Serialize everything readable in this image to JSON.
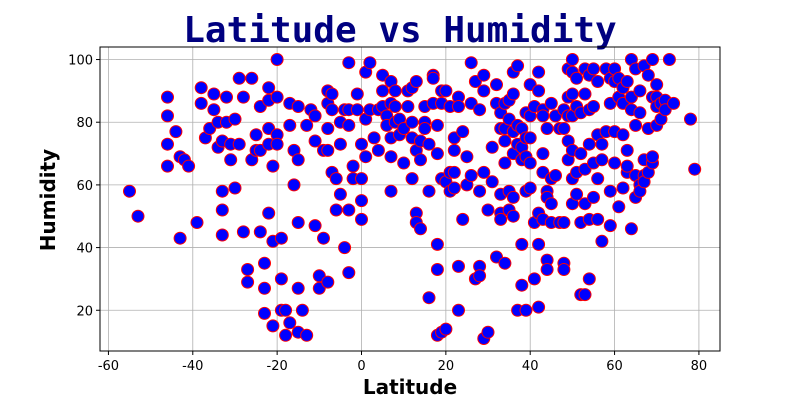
{
  "chart_data": {
    "type": "scatter",
    "title": "Latitude vs Humidity",
    "xlabel": "Latitude",
    "ylabel": "Humidity",
    "xlim": [
      -62,
      85
    ],
    "ylim": [
      7,
      104
    ],
    "xticks": [
      -60,
      -40,
      -20,
      0,
      20,
      40,
      60,
      80
    ],
    "yticks": [
      20,
      40,
      60,
      80,
      100
    ],
    "grid": true,
    "marker_fill": "#0000ff",
    "marker_edge": "#ff0000",
    "title_color": "#000080",
    "points": [
      [
        -55,
        58
      ],
      [
        -53,
        50
      ],
      [
        -46,
        88
      ],
      [
        -46,
        82
      ],
      [
        -46,
        73
      ],
      [
        -46,
        66
      ],
      [
        -44,
        77
      ],
      [
        -43,
        69
      ],
      [
        -43,
        43
      ],
      [
        -42,
        68
      ],
      [
        -41,
        66
      ],
      [
        -39,
        48
      ],
      [
        -38,
        91
      ],
      [
        -38,
        86
      ],
      [
        -37,
        75
      ],
      [
        -36,
        78
      ],
      [
        -35,
        89
      ],
      [
        -35,
        84
      ],
      [
        -34,
        80
      ],
      [
        -34,
        72
      ],
      [
        -33,
        74
      ],
      [
        -33,
        58
      ],
      [
        -33,
        52
      ],
      [
        -33,
        44
      ],
      [
        -32,
        88
      ],
      [
        -32,
        80
      ],
      [
        -31,
        73
      ],
      [
        -31,
        68
      ],
      [
        -30,
        59
      ],
      [
        -30,
        81
      ],
      [
        -29,
        94
      ],
      [
        -29,
        73
      ],
      [
        -28,
        88
      ],
      [
        -28,
        45
      ],
      [
        -27,
        29
      ],
      [
        -27,
        33
      ],
      [
        -26,
        94
      ],
      [
        -26,
        68
      ],
      [
        -25,
        76
      ],
      [
        -25,
        71
      ],
      [
        -24,
        85
      ],
      [
        -24,
        71
      ],
      [
        -24,
        45
      ],
      [
        -23,
        35
      ],
      [
        -23,
        27
      ],
      [
        -23,
        19
      ],
      [
        -22,
        91
      ],
      [
        -22,
        87
      ],
      [
        -22,
        78
      ],
      [
        -22,
        73
      ],
      [
        -22,
        51
      ],
      [
        -21,
        42
      ],
      [
        -21,
        66
      ],
      [
        -21,
        15
      ],
      [
        -20,
        100
      ],
      [
        -20,
        88
      ],
      [
        -20,
        76
      ],
      [
        -20,
        73
      ],
      [
        -19,
        43
      ],
      [
        -19,
        30
      ],
      [
        -19,
        20
      ],
      [
        -18,
        12
      ],
      [
        -18,
        20
      ],
      [
        -17,
        16
      ],
      [
        -17,
        86
      ],
      [
        -17,
        79
      ],
      [
        -16,
        71
      ],
      [
        -16,
        60
      ],
      [
        -15,
        85
      ],
      [
        -15,
        68
      ],
      [
        -15,
        48
      ],
      [
        -15,
        27
      ],
      [
        -15,
        13
      ],
      [
        -14,
        20
      ],
      [
        -13,
        12
      ],
      [
        -13,
        79
      ],
      [
        -12,
        84
      ],
      [
        -11,
        82
      ],
      [
        -11,
        74
      ],
      [
        -11,
        47
      ],
      [
        -10,
        27
      ],
      [
        -10,
        31
      ],
      [
        -9,
        71
      ],
      [
        -9,
        43
      ],
      [
        -8,
        90
      ],
      [
        -8,
        86
      ],
      [
        -8,
        78
      ],
      [
        -8,
        71
      ],
      [
        -8,
        29
      ],
      [
        -7,
        64
      ],
      [
        -7,
        89
      ],
      [
        -7,
        84
      ],
      [
        -6,
        62
      ],
      [
        -6,
        52
      ],
      [
        -5,
        80
      ],
      [
        -5,
        73
      ],
      [
        -5,
        57
      ],
      [
        -4,
        40
      ],
      [
        -4,
        84
      ],
      [
        -3,
        99
      ],
      [
        -3,
        84
      ],
      [
        -3,
        79
      ],
      [
        -3,
        52
      ],
      [
        -3,
        32
      ],
      [
        -2,
        66
      ],
      [
        -2,
        62
      ],
      [
        -1,
        89
      ],
      [
        -1,
        84
      ],
      [
        0,
        73
      ],
      [
        0,
        62
      ],
      [
        0,
        49
      ],
      [
        0,
        55
      ],
      [
        1,
        96
      ],
      [
        1,
        81
      ],
      [
        1,
        69
      ],
      [
        2,
        99
      ],
      [
        2,
        84
      ],
      [
        3,
        75
      ],
      [
        4,
        84
      ],
      [
        4,
        71
      ],
      [
        5,
        95
      ],
      [
        5,
        90
      ],
      [
        5,
        85
      ],
      [
        6,
        82
      ],
      [
        6,
        79
      ],
      [
        7,
        93
      ],
      [
        7,
        86
      ],
      [
        7,
        75
      ],
      [
        7,
        69
      ],
      [
        7,
        58
      ],
      [
        8,
        90
      ],
      [
        8,
        85
      ],
      [
        8,
        80
      ],
      [
        9,
        81
      ],
      [
        9,
        76
      ],
      [
        10,
        78
      ],
      [
        10,
        67
      ],
      [
        11,
        90
      ],
      [
        11,
        85
      ],
      [
        12,
        91
      ],
      [
        12,
        80
      ],
      [
        12,
        62
      ],
      [
        12,
        75
      ],
      [
        13,
        93
      ],
      [
        13,
        71
      ],
      [
        13,
        51
      ],
      [
        13,
        48
      ],
      [
        14,
        68
      ],
      [
        14,
        74
      ],
      [
        14,
        46
      ],
      [
        15,
        85
      ],
      [
        15,
        80
      ],
      [
        15,
        78
      ],
      [
        16,
        73
      ],
      [
        16,
        58
      ],
      [
        16,
        24
      ],
      [
        17,
        95
      ],
      [
        17,
        86
      ],
      [
        17,
        94
      ],
      [
        18,
        79
      ],
      [
        18,
        70
      ],
      [
        18,
        41
      ],
      [
        18,
        33
      ],
      [
        18,
        12
      ],
      [
        19,
        62
      ],
      [
        19,
        90
      ],
      [
        19,
        86
      ],
      [
        19,
        13
      ],
      [
        20,
        90
      ],
      [
        20,
        61
      ],
      [
        20,
        14
      ],
      [
        21,
        85
      ],
      [
        21,
        64
      ],
      [
        21,
        58
      ],
      [
        22,
        71
      ],
      [
        22,
        75
      ],
      [
        22,
        64
      ],
      [
        22,
        59
      ],
      [
        23,
        88
      ],
      [
        23,
        85
      ],
      [
        23,
        20
      ],
      [
        23,
        34
      ],
      [
        24,
        49
      ],
      [
        24,
        77
      ],
      [
        25,
        69
      ],
      [
        25,
        60
      ],
      [
        26,
        99
      ],
      [
        26,
        86
      ],
      [
        26,
        63
      ],
      [
        27,
        93
      ],
      [
        27,
        30
      ],
      [
        28,
        84
      ],
      [
        28,
        58
      ],
      [
        28,
        34
      ],
      [
        28,
        31
      ],
      [
        29,
        95
      ],
      [
        29,
        90
      ],
      [
        29,
        64
      ],
      [
        29,
        11
      ],
      [
        30,
        13
      ],
      [
        30,
        52
      ],
      [
        31,
        61
      ],
      [
        31,
        72
      ],
      [
        32,
        92
      ],
      [
        32,
        86
      ],
      [
        32,
        37
      ],
      [
        33,
        83
      ],
      [
        33,
        78
      ],
      [
        33,
        57
      ],
      [
        33,
        51
      ],
      [
        33,
        49
      ],
      [
        34,
        86
      ],
      [
        34,
        78
      ],
      [
        34,
        74
      ],
      [
        34,
        67
      ],
      [
        34,
        35
      ],
      [
        35,
        87
      ],
      [
        35,
        81
      ],
      [
        35,
        58
      ],
      [
        35,
        52
      ],
      [
        36,
        96
      ],
      [
        36,
        89
      ],
      [
        36,
        77
      ],
      [
        36,
        70
      ],
      [
        36,
        56
      ],
      [
        36,
        50
      ],
      [
        37,
        98
      ],
      [
        37,
        79
      ],
      [
        37,
        73
      ],
      [
        37,
        20
      ],
      [
        38,
        78
      ],
      [
        38,
        72
      ],
      [
        38,
        68
      ],
      [
        38,
        41
      ],
      [
        38,
        28
      ],
      [
        39,
        83
      ],
      [
        39,
        75
      ],
      [
        39,
        69
      ],
      [
        39,
        58
      ],
      [
        39,
        20
      ],
      [
        40,
        92
      ],
      [
        40,
        82
      ],
      [
        40,
        75
      ],
      [
        40,
        67
      ],
      [
        40,
        59
      ],
      [
        41,
        48
      ],
      [
        41,
        85
      ],
      [
        41,
        30
      ],
      [
        42,
        96
      ],
      [
        42,
        90
      ],
      [
        42,
        51
      ],
      [
        42,
        41
      ],
      [
        42,
        21
      ],
      [
        43,
        64
      ],
      [
        43,
        84
      ],
      [
        43,
        82
      ],
      [
        43,
        70
      ],
      [
        43,
        49
      ],
      [
        44,
        78
      ],
      [
        44,
        58
      ],
      [
        44,
        56
      ],
      [
        44,
        36
      ],
      [
        44,
        33
      ],
      [
        45,
        86
      ],
      [
        45,
        62
      ],
      [
        45,
        48
      ],
      [
        45,
        54
      ],
      [
        46,
        82
      ],
      [
        46,
        63
      ],
      [
        47,
        78
      ],
      [
        47,
        48
      ],
      [
        48,
        84
      ],
      [
        48,
        78
      ],
      [
        48,
        48
      ],
      [
        48,
        35
      ],
      [
        48,
        33
      ],
      [
        49,
        97
      ],
      [
        49,
        88
      ],
      [
        49,
        82
      ],
      [
        49,
        74
      ],
      [
        49,
        68
      ],
      [
        50,
        100
      ],
      [
        50,
        96
      ],
      [
        50,
        89
      ],
      [
        50,
        82
      ],
      [
        50,
        71
      ],
      [
        50,
        62
      ],
      [
        50,
        54
      ],
      [
        51,
        94
      ],
      [
        51,
        85
      ],
      [
        51,
        64
      ],
      [
        51,
        57
      ],
      [
        52,
        83
      ],
      [
        52,
        70
      ],
      [
        52,
        48
      ],
      [
        52,
        25
      ],
      [
        53,
        97
      ],
      [
        53,
        89
      ],
      [
        53,
        65
      ],
      [
        53,
        54
      ],
      [
        53,
        25
      ],
      [
        54,
        95
      ],
      [
        54,
        84
      ],
      [
        54,
        73
      ],
      [
        54,
        49
      ],
      [
        54,
        30
      ],
      [
        55,
        97
      ],
      [
        55,
        85
      ],
      [
        55,
        67
      ],
      [
        55,
        56
      ],
      [
        56,
        93
      ],
      [
        56,
        76
      ],
      [
        56,
        62
      ],
      [
        56,
        49
      ],
      [
        57,
        73
      ],
      [
        57,
        68
      ],
      [
        57,
        42
      ],
      [
        58,
        97
      ],
      [
        58,
        77
      ],
      [
        59,
        94
      ],
      [
        59,
        86
      ],
      [
        59,
        58
      ],
      [
        59,
        47
      ],
      [
        60,
        97
      ],
      [
        60,
        93
      ],
      [
        60,
        77
      ],
      [
        60,
        67
      ],
      [
        61,
        94
      ],
      [
        61,
        88
      ],
      [
        61,
        53
      ],
      [
        62,
        91
      ],
      [
        62,
        86
      ],
      [
        62,
        76
      ],
      [
        62,
        59
      ],
      [
        63,
        93
      ],
      [
        63,
        64
      ],
      [
        63,
        71
      ],
      [
        63,
        66
      ],
      [
        64,
        100
      ],
      [
        64,
        88
      ],
      [
        64,
        84
      ],
      [
        64,
        46
      ],
      [
        65,
        97
      ],
      [
        65,
        79
      ],
      [
        65,
        63
      ],
      [
        65,
        56
      ],
      [
        66,
        90
      ],
      [
        66,
        83
      ],
      [
        66,
        60
      ],
      [
        66,
        58
      ],
      [
        67,
        98
      ],
      [
        67,
        68
      ],
      [
        67,
        63
      ],
      [
        67,
        61
      ],
      [
        68,
        95
      ],
      [
        68,
        78
      ],
      [
        68,
        64
      ],
      [
        69,
        100
      ],
      [
        69,
        88
      ],
      [
        69,
        67
      ],
      [
        69,
        69
      ],
      [
        70,
        92
      ],
      [
        70,
        88
      ],
      [
        70,
        85
      ],
      [
        70,
        79
      ],
      [
        71,
        86
      ],
      [
        71,
        81
      ],
      [
        72,
        87
      ],
      [
        72,
        84
      ],
      [
        73,
        100
      ],
      [
        74,
        86
      ],
      [
        78,
        81
      ],
      [
        79,
        65
      ]
    ]
  }
}
